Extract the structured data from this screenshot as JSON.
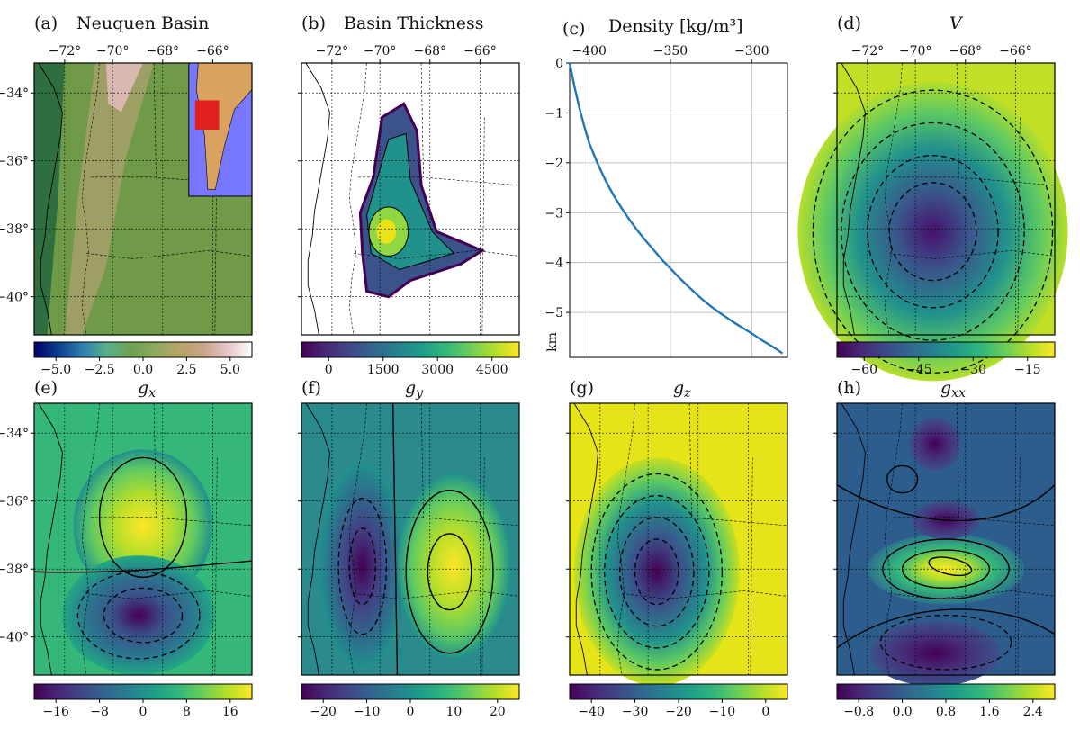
{
  "panels": {
    "a": {
      "label": "(a)",
      "title": "Neuquen Basin",
      "cbar_ticks": [
        "−5.0",
        "−2.5",
        "0.0",
        "2.5",
        "5.0"
      ]
    },
    "b": {
      "label": "(b)",
      "title": "Basin Thickness",
      "cbar_ticks": [
        "0",
        "1500",
        "3000",
        "4500"
      ]
    },
    "c": {
      "label": "(c)",
      "title": "Density [kg/m³]"
    },
    "d": {
      "label": "(d)",
      "title": "V",
      "cbar_ticks": [
        "−60",
        "−45",
        "−30",
        "−15"
      ]
    },
    "e": {
      "label": "(e)",
      "title": "g",
      "sub": "x",
      "cbar_ticks": [
        "−16",
        "−8",
        "0",
        "8",
        "16"
      ]
    },
    "f": {
      "label": "(f)",
      "title": "g",
      "sub": "y",
      "cbar_ticks": [
        "−20",
        "−10",
        "0",
        "10",
        "20"
      ]
    },
    "g": {
      "label": "(g)",
      "title": "g",
      "sub": "z",
      "cbar_ticks": [
        "−40",
        "−30",
        "−20",
        "−10",
        "0"
      ]
    },
    "h": {
      "label": "(h)",
      "title": "g",
      "sub": "xx",
      "cbar_ticks": [
        "−0.8",
        "0.0",
        "0.8",
        "1.6",
        "2.4"
      ]
    }
  },
  "map_axes": {
    "lon_ticks": [
      "−72°",
      "−70°",
      "−68°",
      "−66°"
    ],
    "lat_ticks": [
      "−34°",
      "−36°",
      "−38°",
      "−40°"
    ]
  },
  "colors": {
    "viridis": [
      "#440154",
      "#482878",
      "#3e4989",
      "#31688e",
      "#26828e",
      "#1f9e89",
      "#35b779",
      "#6ece58",
      "#b5de2b",
      "#fde725"
    ],
    "topo": [
      "#000066",
      "#0b3f8f",
      "#2e7fb0",
      "#58b08a",
      "#6fa052",
      "#8fa95a",
      "#b8a469",
      "#c9a488",
      "#e4c6c6",
      "#ffffff"
    ],
    "density_line": "#1f77b4",
    "inset_sea": "#7777ff",
    "inset_land": "#d9a35f",
    "inset_highlight": "#e02020"
  },
  "chart_data": [
    {
      "type": "line",
      "title": "Density [kg/m³]",
      "xlabel": "Density [kg/m³]",
      "ylabel": "km",
      "x_ticks": [
        "−400",
        "−350",
        "−300"
      ],
      "y_ticks": [
        "0",
        "−1",
        "−2",
        "−3",
        "−4",
        "−5"
      ],
      "xlim": [
        -412,
        -278
      ],
      "ylim": [
        -5.9,
        0
      ],
      "grid": true,
      "series": [
        {
          "x": [
            -412,
            -409,
            -406,
            -403,
            -400,
            -395,
            -390,
            -385,
            -380,
            -375,
            -370,
            -365,
            -360,
            -355,
            -350,
            -345,
            -340,
            -335,
            -330,
            -325,
            -320,
            -315,
            -310,
            -305,
            -300,
            -295,
            -290,
            -285,
            -281
          ],
          "y": [
            0,
            -0.48,
            -0.9,
            -1.27,
            -1.6,
            -2.0,
            -2.35,
            -2.65,
            -2.91,
            -3.15,
            -3.37,
            -3.57,
            -3.76,
            -3.95,
            -4.12,
            -4.29,
            -4.45,
            -4.6,
            -4.75,
            -4.88,
            -5.0,
            -5.11,
            -5.22,
            -5.32,
            -5.42,
            -5.53,
            -5.63,
            -5.73,
            -5.82
          ]
        }
      ]
    }
  ]
}
